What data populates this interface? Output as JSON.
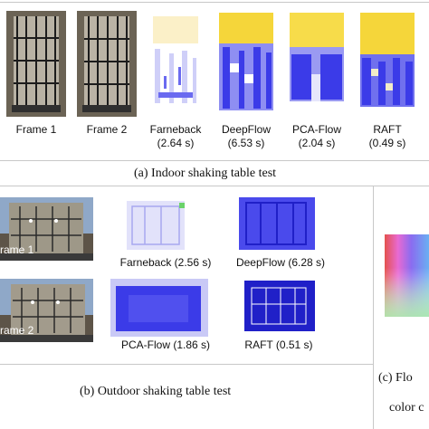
{
  "panel_a": {
    "labels": [
      {
        "name": "Frame 1",
        "time": ""
      },
      {
        "name": "Frame 2",
        "time": ""
      },
      {
        "name": "Farneback",
        "time": "(2.64 s)"
      },
      {
        "name": "DeepFlow",
        "time": "(6.53 s)"
      },
      {
        "name": "PCA-Flow",
        "time": "(2.04 s)"
      },
      {
        "name": "RAFT",
        "time": "(0.49 s)"
      }
    ],
    "caption": "(a)  Indoor shaking table test"
  },
  "panel_b": {
    "frame1_label": "rame 1",
    "frame2_label": "rame 2",
    "labels": [
      "Farneback (2.56 s)",
      "DeepFlow (6.28 s)",
      "PCA-Flow (1.86 s)",
      "RAFT (0.51 s)"
    ],
    "caption": "(b)  Outdoor shaking table test"
  },
  "panel_c": {
    "caption_line1": "(c)  Flo",
    "caption_line2": "color c"
  },
  "colors": {
    "flow_blue": "#3b3be8",
    "flow_yellow": "#f5d63a",
    "rule_gray": "#c8c8c8"
  }
}
